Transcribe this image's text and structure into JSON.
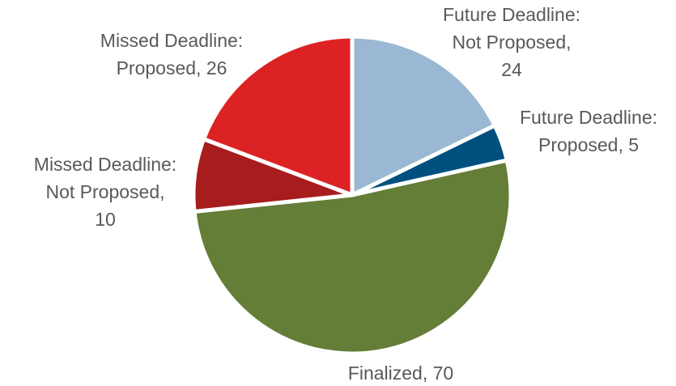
{
  "chart_data": {
    "type": "pie",
    "values": [
      24,
      5,
      70,
      10,
      26
    ],
    "value_labels": [
      [
        "Future Deadline:",
        "Not Proposed,",
        "24"
      ],
      [
        "Future Deadline:",
        "Proposed, 5"
      ],
      [
        "Finalized, 70"
      ],
      [
        "Missed Deadline:",
        "Not Proposed,",
        "10"
      ],
      [
        "Missed Deadline:",
        "Proposed, 26"
      ]
    ],
    "colors": [
      "#9ab8d3",
      "#00507f",
      "#647d37",
      "#a71c1c",
      "#dd2224"
    ]
  }
}
